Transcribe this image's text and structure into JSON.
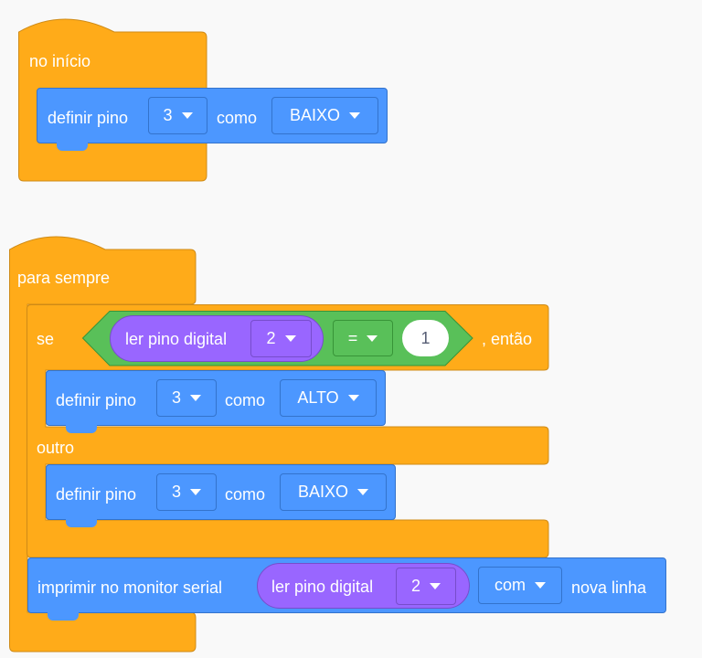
{
  "colors": {
    "events": "#FFAB19",
    "pins": "#4C97FF",
    "sensing": "#9966FF",
    "operators": "#59C059"
  },
  "start_block": {
    "label": "no início",
    "set_pin": {
      "label": "definir pino",
      "pin": "3",
      "as_label": "como",
      "value": "BAIXO"
    }
  },
  "forever_block": {
    "label": "para sempre",
    "if_block": {
      "if_label": "se",
      "condition": {
        "reporter_label": "ler pino digital",
        "pin": "2",
        "operator": "=",
        "value": "1"
      },
      "then_label": ", então",
      "then_set": {
        "label": "definir pino",
        "pin": "3",
        "as_label": "como",
        "value": "ALTO"
      },
      "else_label": "outro",
      "else_set": {
        "label": "definir pino",
        "pin": "3",
        "as_label": "como",
        "value": "BAIXO"
      }
    },
    "print_block": {
      "label": "imprimir no monitor serial",
      "reporter_label": "ler pino digital",
      "pin": "2",
      "mode": "com",
      "suffix": "nova linha"
    }
  }
}
